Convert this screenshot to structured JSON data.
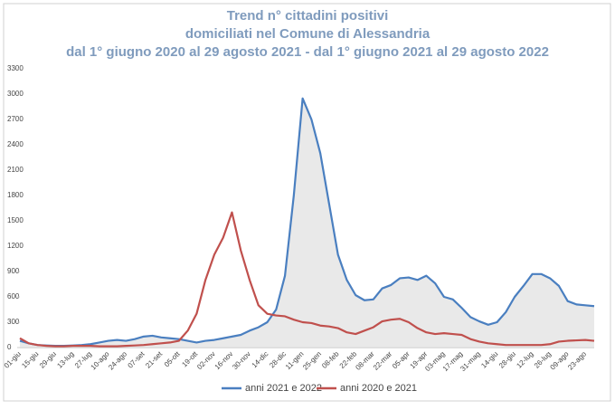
{
  "chart_data": {
    "type": "line",
    "title": [
      "Trend n° cittadini positivi",
      "domiciliati nel Comune di Alessandria",
      "dal 1° giugno 2020 al 29 agosto 2021 - dal 1° giugno 2021 al 29 agosto 2022"
    ],
    "categories": [
      "01-giu",
      null,
      "15-giu",
      null,
      "29-giu",
      null,
      "13-lug",
      null,
      "27-lug",
      null,
      "10-ago",
      null,
      "24-ago",
      null,
      "07-set",
      null,
      "21-set",
      null,
      "05-ott",
      null,
      "19-ott",
      null,
      "02-nov",
      null,
      "16-nov",
      null,
      "30-nov",
      null,
      "14-dic",
      null,
      "28-dic",
      null,
      "11-gen",
      null,
      "25-gen",
      null,
      "08-feb",
      null,
      "22-feb",
      null,
      "08-mar",
      null,
      "22-mar",
      null,
      "05-apr",
      null,
      "19-apr",
      null,
      "03-mag",
      null,
      "17-mag",
      null,
      "31-mag",
      null,
      "14-giu",
      null,
      "28-giu",
      null,
      "12-lug",
      null,
      "26-lug",
      null,
      "09-ago",
      null,
      "23-ago",
      null
    ],
    "series": [
      {
        "name": "anni 2021 e 2022",
        "color": "#4a7fc0",
        "values": [
          80,
          50,
          30,
          25,
          20,
          20,
          25,
          30,
          40,
          60,
          80,
          90,
          80,
          100,
          130,
          140,
          120,
          110,
          100,
          80,
          60,
          80,
          90,
          110,
          130,
          150,
          200,
          240,
          300,
          450,
          850,
          1800,
          2950,
          2700,
          2300,
          1700,
          1100,
          800,
          620,
          560,
          570,
          700,
          740,
          820,
          830,
          800,
          850,
          760,
          600,
          570,
          470,
          360,
          310,
          270,
          300,
          420,
          600,
          730,
          870,
          870,
          820,
          730,
          550,
          510,
          500,
          490
        ]
      },
      {
        "name": "anni 2020 e 2021",
        "color": "#c0504d",
        "values": [
          110,
          50,
          30,
          20,
          15,
          15,
          20,
          20,
          20,
          15,
          15,
          15,
          20,
          25,
          30,
          40,
          50,
          60,
          80,
          200,
          400,
          800,
          1100,
          1300,
          1600,
          1150,
          800,
          500,
          400,
          380,
          370,
          330,
          300,
          290,
          260,
          250,
          230,
          180,
          160,
          200,
          240,
          310,
          330,
          340,
          300,
          230,
          180,
          160,
          170,
          160,
          150,
          100,
          70,
          50,
          40,
          30,
          30,
          30,
          30,
          30,
          40,
          70,
          80,
          85,
          90,
          80
        ]
      }
    ],
    "ylim": [
      0,
      3300
    ],
    "yticks": [
      0,
      300,
      600,
      900,
      1200,
      1500,
      1800,
      2100,
      2400,
      2700,
      3000,
      3300
    ],
    "grid": false,
    "legend": "bottom"
  }
}
